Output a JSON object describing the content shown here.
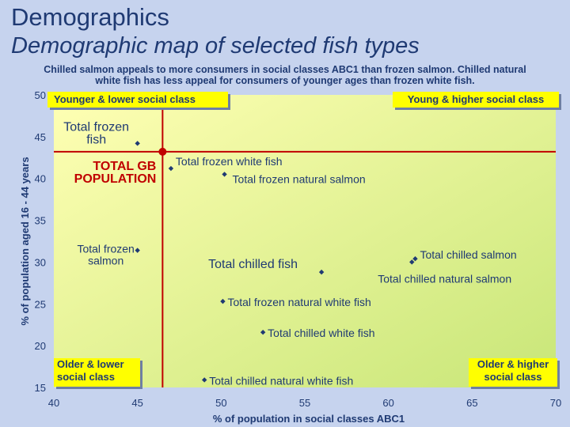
{
  "header": {
    "title": "Demographics",
    "subtitle": "Demographic map of selected fish types",
    "caption_line1": "Chilled salmon appeals to more consumers in social classes ABC1 than frozen salmon. Chilled natural",
    "caption_line2": "white fish has less appeal for consumers of younger ages than frozen white fish."
  },
  "quadrants": {
    "top_left": "Younger & lower social class",
    "top_right": "Young & higher social class",
    "bottom_left_1": "Older & lower",
    "bottom_left_2": "social class",
    "bottom_right_1": "Older & higher",
    "bottom_right_2": "social class"
  },
  "colors": {
    "background": "#c6d3ee",
    "plot_gradient_light": "#ffffb4",
    "plot_gradient_dark": "#c8e678",
    "reference_lines": "#c00000",
    "points": "#1f3a73",
    "quadrant_boxes": "#ffff00"
  },
  "chart_data": {
    "type": "scatter",
    "title": "Demographic map of selected fish types",
    "xlabel": "% of population in social classes ABC1",
    "ylabel": "% of population aged 16 - 44 years",
    "xlim": [
      40,
      70
    ],
    "ylim": [
      15,
      50
    ],
    "xticks": [
      40,
      45,
      50,
      55,
      60,
      65,
      70
    ],
    "yticks": [
      15,
      20,
      25,
      30,
      35,
      40,
      45,
      50
    ],
    "grid": false,
    "reference": {
      "name": "TOTAL GB POPULATION",
      "name_line1": "TOTAL GB",
      "name_line2": "POPULATION",
      "x": 46.5,
      "y": 43.2
    },
    "points": [
      {
        "name": "Total frozen fish",
        "line1": "Total frozen",
        "line2": "fish",
        "x": 45.0,
        "y": 44.2
      },
      {
        "name": "Total frozen white fish",
        "x": 47.0,
        "y": 41.2
      },
      {
        "name": "Total frozen natural salmon",
        "x": 50.2,
        "y": 40.5
      },
      {
        "name": "Total frozen salmon",
        "line1": "Total frozen",
        "line2": "salmon",
        "x": 45.0,
        "y": 31.4
      },
      {
        "name": "Total chilled fish",
        "x": 56.0,
        "y": 28.8
      },
      {
        "name": "Total chilled salmon",
        "x": 61.6,
        "y": 30.4
      },
      {
        "name": "Total chilled natural salmon",
        "x": 61.4,
        "y": 30.0
      },
      {
        "name": "Total frozen natural white fish",
        "x": 50.1,
        "y": 25.3
      },
      {
        "name": "Total chilled white fish",
        "x": 52.5,
        "y": 21.6
      },
      {
        "name": "Total chilled natural white fish",
        "x": 49.0,
        "y": 15.9
      }
    ]
  }
}
